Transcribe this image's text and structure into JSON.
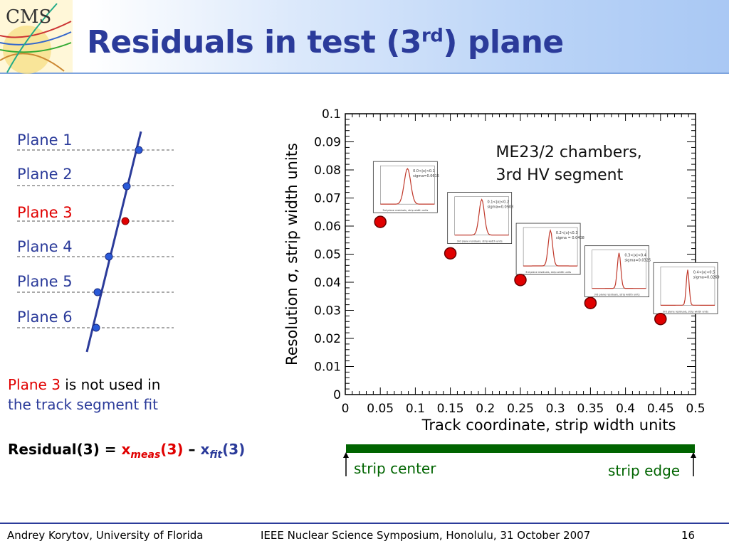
{
  "slide": {
    "title": "Residuals in test (3",
    "title_sup": "rd",
    "title_end": ") plane",
    "logo_text": "CMS"
  },
  "planes": [
    "Plane 1",
    "Plane 2",
    "Plane 3",
    "Plane 4",
    "Plane 5",
    "Plane 6"
  ],
  "note": {
    "red_part": "Plane 3",
    "rest_part": " is not used in",
    "line2": "the track segment fit"
  },
  "residual": {
    "prefix": "Residual(3) = ",
    "x1": "x",
    "sub1": "meas",
    "arg1": "(3)",
    "minus": " – ",
    "x2": "x",
    "sub2": "fit",
    "arg2": "(3)"
  },
  "strip": {
    "left": "strip center",
    "right": "strip edge",
    "bar_color": "#006400"
  },
  "footer": {
    "left": "Andrey Korytov, University of Florida",
    "center": "IEEE Nuclear Science Symposium, Honolulu, 31 October 2007",
    "page": "16"
  },
  "colors": {
    "title_blue": "#2b3b9a",
    "accent_red": "#e00000",
    "marker_red": "#e00000",
    "histogram": "#c0392b"
  },
  "chart_data": {
    "type": "scatter",
    "annotation_lines": [
      "ME23/2 chambers,",
      "3rd HV segment"
    ],
    "xlabel": "Track coordinate, strip width units",
    "ylabel": "Resolution σ, strip width units",
    "xlim": [
      0,
      0.5
    ],
    "ylim": [
      0,
      0.1
    ],
    "xticks": [
      "0",
      "0.05",
      "0.1",
      "0.15",
      "0.2",
      "0.25",
      "0.3",
      "0.35",
      "0.4",
      "0.45",
      "0.5"
    ],
    "yticks": [
      "0",
      "0.01",
      "0.02",
      "0.03",
      "0.04",
      "0.05",
      "0.06",
      "0.07",
      "0.08",
      "0.09",
      "0.1"
    ],
    "grid": false,
    "points": [
      {
        "x": 0.05,
        "y": 0.0615
      },
      {
        "x": 0.15,
        "y": 0.0503
      },
      {
        "x": 0.25,
        "y": 0.0408
      },
      {
        "x": 0.35,
        "y": 0.0326
      },
      {
        "x": 0.45,
        "y": 0.0269
      }
    ],
    "insets": [
      {
        "text1": "0.0<|x|<0.1",
        "text2": "sigma=0.0615",
        "xlabel": "3rd plane residuals, strip width units"
      },
      {
        "text1": "0.1<|x|<0.2",
        "text2": "sigma=0.0503",
        "xlabel": "3rd plane residuals, strip width units"
      },
      {
        "text1": "0.2<|x|<0.3",
        "text2": "sigma = 0.0408",
        "xlabel": "3rd plane residuals, strip width units"
      },
      {
        "text1": "0.3<|x|<0.4",
        "text2": "sigma=0.0326",
        "xlabel": "3rd plane residuals, strip width units"
      },
      {
        "text1": "0.4<|x|<0.5",
        "text2": "sigma=0.0269",
        "xlabel": "3rd plane residuals, strip width units"
      }
    ]
  }
}
